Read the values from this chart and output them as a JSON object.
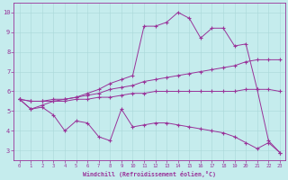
{
  "xlabel": "Windchill (Refroidissement éolien,°C)",
  "bg_color": "#c5eced",
  "line_color": "#993399",
  "grid_color": "#aad8d8",
  "xlim": [
    -0.5,
    23.5
  ],
  "ylim": [
    2.5,
    10.5
  ],
  "xticks": [
    0,
    1,
    2,
    3,
    4,
    5,
    6,
    7,
    8,
    9,
    10,
    11,
    12,
    13,
    14,
    15,
    16,
    17,
    18,
    19,
    20,
    21,
    22,
    23
  ],
  "yticks": [
    3,
    4,
    5,
    6,
    7,
    8,
    9,
    10
  ],
  "series": [
    {
      "x": [
        0,
        1,
        2,
        3,
        4,
        5,
        6,
        7,
        8,
        9,
        10,
        11,
        12,
        13,
        14,
        15,
        16,
        17,
        18,
        19,
        20,
        21,
        22,
        23
      ],
      "y": [
        5.6,
        5.1,
        5.2,
        4.8,
        4.0,
        4.5,
        4.4,
        3.7,
        3.5,
        5.1,
        4.2,
        4.3,
        4.4,
        4.4,
        4.3,
        4.2,
        4.1,
        4.0,
        3.9,
        3.7,
        3.4,
        3.1,
        3.4,
        2.9
      ]
    },
    {
      "x": [
        0,
        1,
        2,
        3,
        4,
        5,
        6,
        7,
        8,
        9,
        10,
        11,
        12,
        13,
        14,
        15,
        16,
        17,
        18,
        19,
        20,
        21,
        22,
        23
      ],
      "y": [
        5.6,
        5.5,
        5.5,
        5.5,
        5.5,
        5.6,
        5.6,
        5.7,
        5.7,
        5.8,
        5.9,
        5.9,
        6.0,
        6.0,
        6.0,
        6.0,
        6.0,
        6.0,
        6.0,
        6.0,
        6.1,
        6.1,
        6.1,
        6.0
      ]
    },
    {
      "x": [
        0,
        1,
        2,
        3,
        4,
        5,
        6,
        7,
        8,
        9,
        10,
        11,
        12,
        13,
        14,
        15,
        16,
        17,
        18,
        19,
        20,
        21,
        22,
        23
      ],
      "y": [
        5.6,
        5.5,
        5.5,
        5.6,
        5.6,
        5.7,
        5.8,
        5.9,
        6.1,
        6.2,
        6.3,
        6.5,
        6.6,
        6.7,
        6.8,
        6.9,
        7.0,
        7.1,
        7.2,
        7.3,
        7.5,
        7.6,
        7.6,
        7.6
      ]
    },
    {
      "x": [
        0,
        1,
        2,
        3,
        4,
        5,
        6,
        7,
        8,
        9,
        10,
        11,
        12,
        13,
        14,
        15,
        16,
        17,
        18,
        19,
        20,
        21,
        22,
        23
      ],
      "y": [
        5.6,
        5.1,
        5.3,
        5.5,
        5.6,
        5.7,
        5.9,
        6.1,
        6.4,
        6.6,
        6.8,
        9.3,
        9.3,
        9.5,
        10.0,
        9.7,
        8.7,
        9.2,
        9.2,
        8.3,
        8.4,
        6.1,
        3.5,
        2.9
      ]
    }
  ]
}
